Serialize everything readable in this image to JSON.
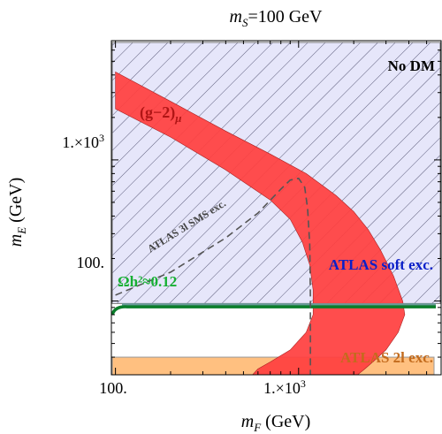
{
  "chart_data": {
    "type": "area",
    "title": "m_S=100 GeV",
    "title_parts": {
      "m": "m",
      "sub": "S",
      "rest": "=100 GeV"
    },
    "xlabel": {
      "m": "m",
      "sub": "F",
      "rest": " (GeV)"
    },
    "ylabel": {
      "m": "m",
      "sub": "E",
      "rest": " (GeV)"
    },
    "x_scale": "log",
    "y_scale": "log",
    "xlim": [
      95,
      6000
    ],
    "ylim": [
      30,
      7000
    ],
    "x_ticks": [
      {
        "value": 100,
        "label": "100."
      },
      {
        "value": 1000,
        "label": "1.×10³"
      }
    ],
    "y_ticks": [
      {
        "value": 100,
        "label": "100."
      },
      {
        "value": 1000,
        "label": "1.×10³"
      }
    ],
    "regions": {
      "no_dm": {
        "label": "No DM",
        "color": "#e6e6fa",
        "hatch": "#4b4b6b",
        "lower_bound_mE": 96
      },
      "atlas_2l": {
        "label": "ATLAS 2l exc.",
        "color": "#ffc080",
        "text_color": "#c36b1d",
        "mE_range": [
          30,
          40
        ]
      },
      "atlas_soft": {
        "label": "ATLAS soft exc.",
        "color": "#6a9a9a",
        "text_color": "#0a1fc8",
        "mE": 93
      },
      "relic": {
        "label": "Ωh²≈0.12",
        "color": "#0a7d2a",
        "text_color": "#17b033",
        "mE": 91
      },
      "g2": {
        "label": "(g−2)μ",
        "label_main": "(g−2)",
        "label_sub": "μ",
        "color": "#ff4040",
        "text_color": "#b01515"
      },
      "atlas_3l": {
        "label": "ATLAS 3l SMS exc.",
        "color": "#555555"
      }
    },
    "g2_band": {
      "upper_edge": [
        [
          100,
          4200
        ],
        [
          200,
          2600
        ],
        [
          400,
          1600
        ],
        [
          700,
          1100
        ],
        [
          1100,
          800
        ],
        [
          1600,
          560
        ],
        [
          2000,
          430
        ],
        [
          2400,
          320
        ],
        [
          2800,
          230
        ],
        [
          3300,
          150
        ],
        [
          3700,
          100
        ],
        [
          3800,
          80
        ],
        [
          3500,
          60
        ],
        [
          3000,
          45
        ],
        [
          2600,
          38
        ],
        [
          2300,
          33
        ],
        [
          2100,
          30
        ]
      ],
      "lower_edge": [
        [
          100,
          2300
        ],
        [
          200,
          1450
        ],
        [
          400,
          850
        ],
        [
          700,
          520
        ],
        [
          900,
          380
        ],
        [
          1050,
          260
        ],
        [
          1150,
          180
        ],
        [
          1200,
          120
        ],
        [
          1200,
          80
        ],
        [
          1100,
          60
        ],
        [
          900,
          45
        ],
        [
          700,
          37
        ],
        [
          600,
          33
        ],
        [
          560,
          30
        ]
      ]
    },
    "atlas_3l_curve": [
      [
        100,
        110
      ],
      [
        200,
        160
      ],
      [
        400,
        280
      ],
      [
        600,
        420
      ],
      [
        800,
        620
      ],
      [
        900,
        720
      ],
      [
        1000,
        740
      ],
      [
        1080,
        640
      ],
      [
        1120,
        450
      ],
      [
        1150,
        250
      ],
      [
        1160,
        110
      ],
      [
        1160,
        60
      ],
      [
        1160,
        30
      ]
    ]
  }
}
